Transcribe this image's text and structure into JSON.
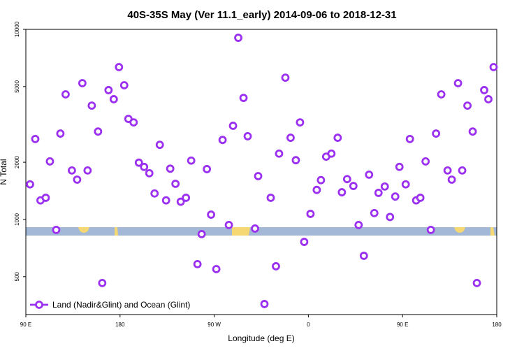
{
  "chart_data": {
    "type": "scatter",
    "title": "40S-35S May (Ver 11.1_early)   2014-09-06 to 2018-12-31",
    "xlabel": "Longitude (deg E)",
    "ylabel": "N Total",
    "log_y": true,
    "xlim": [
      90,
      540
    ],
    "xticks": [
      {
        "value": 90,
        "label": "90 E"
      },
      180,
      {
        "value": 270,
        "label": "90 W"
      },
      {
        "value": 360,
        "label": "0"
      },
      {
        "value": 450,
        "label": "90 E"
      },
      {
        "value": 540,
        "label": "180"
      }
    ],
    "ylim": [
      316,
      10000
    ],
    "yticks": [
      500,
      1000,
      2000,
      5000,
      10000
    ],
    "legend": "lower left",
    "series": [
      {
        "name": "Land (Nadir&Glint) and Ocean (Glint)",
        "color": "#9b30f0",
        "x": [
          94,
          99,
          104,
          109,
          113,
          119,
          123,
          128,
          134,
          139,
          144,
          149,
          153,
          159,
          163,
          169,
          174,
          179,
          184,
          188,
          193,
          198,
          203,
          208,
          213,
          218,
          224,
          228,
          233,
          238,
          243,
          248,
          254,
          258,
          263,
          267,
          272,
          278,
          284,
          288,
          293,
          298,
          302,
          309,
          312,
          318,
          324,
          329,
          332,
          338,
          343,
          348,
          352,
          356,
          362,
          368,
          372,
          377,
          382,
          388,
          392,
          397,
          403,
          408,
          413,
          418,
          423,
          427,
          433,
          438,
          443,
          447,
          453,
          457,
          463,
          467,
          472,
          477,
          482,
          487,
          493,
          497,
          503,
          507,
          512,
          517,
          521,
          528,
          532,
          537
        ],
        "values": [
          1530,
          2650,
          1260,
          1300,
          2020,
          881,
          2830,
          4550,
          1810,
          1620,
          5210,
          1810,
          3970,
          2900,
          463,
          4790,
          4290,
          6330,
          5080,
          3380,
          3240,
          1990,
          1890,
          1750,
          1370,
          2470,
          1260,
          1850,
          1540,
          1240,
          1300,
          2040,
          582,
          837,
          1840,
          1060,
          548,
          2620,
          935,
          3110,
          9030,
          4360,
          2740,
          896,
          1690,
          359,
          1300,
          567,
          2220,
          5570,
          2690,
          2050,
          3240,
          762,
          1070,
          1430,
          1610,
          2140,
          2220,
          2690,
          1390,
          1630,
          1500,
          935,
          644,
          1720,
          1080,
          1380,
          1490,
          1030,
          1320,
          1890,
          1530,
          2650,
          1260,
          1300,
          2020,
          881,
          2830,
          4550,
          1810,
          1620,
          5210,
          1810,
          3970,
          2900,
          463,
          4790,
          4290,
          6330
        ]
      }
    ]
  }
}
